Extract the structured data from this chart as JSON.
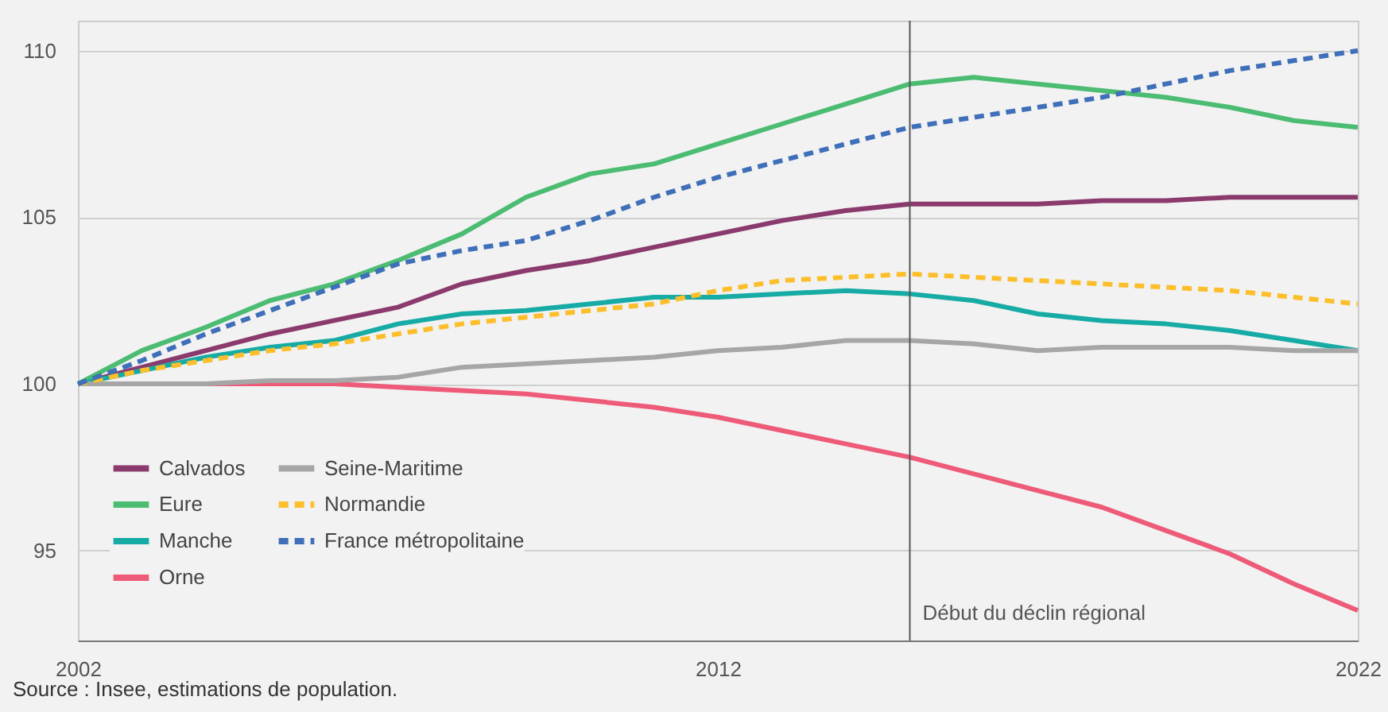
{
  "chart_data": {
    "type": "line",
    "x": [
      2002,
      2003,
      2004,
      2005,
      2006,
      2007,
      2008,
      2009,
      2010,
      2011,
      2012,
      2013,
      2014,
      2015,
      2016,
      2017,
      2018,
      2019,
      2020,
      2021,
      2022
    ],
    "series": [
      {
        "name": "Calvados",
        "color": "#8b3a6e",
        "line_style": "solid",
        "values": [
          100,
          100.5,
          101,
          101.5,
          101.9,
          102.3,
          103,
          103.4,
          103.7,
          104.1,
          104.5,
          104.9,
          105.2,
          105.4,
          105.4,
          105.4,
          105.5,
          105.5,
          105.6,
          105.6,
          105.6
        ]
      },
      {
        "name": "Eure",
        "color": "#4cbc73",
        "line_style": "solid",
        "values": [
          100,
          101,
          101.7,
          102.5,
          103,
          103.7,
          104.5,
          105.6,
          106.3,
          106.6,
          107.2,
          107.8,
          108.4,
          109,
          109.2,
          109,
          108.8,
          108.6,
          108.3,
          107.9,
          107.7
        ]
      },
      {
        "name": "Manche",
        "color": "#16aba4",
        "line_style": "solid",
        "values": [
          100,
          100.4,
          100.8,
          101.1,
          101.3,
          101.8,
          102.1,
          102.2,
          102.4,
          102.6,
          102.6,
          102.7,
          102.8,
          102.7,
          102.5,
          102.1,
          101.9,
          101.8,
          101.6,
          101.3,
          101
        ]
      },
      {
        "name": "Orne",
        "color": "#ee5b78",
        "line_style": "solid",
        "values": [
          100,
          100,
          100,
          100,
          100,
          99.9,
          99.8,
          99.7,
          99.5,
          99.3,
          99,
          98.6,
          98.2,
          97.8,
          97.3,
          96.8,
          96.3,
          95.6,
          94.9,
          94,
          93.2
        ]
      },
      {
        "name": "Seine-Maritime",
        "color": "#a6a6a6",
        "line_style": "solid",
        "values": [
          100,
          100,
          100,
          100.1,
          100.1,
          100.2,
          100.5,
          100.6,
          100.7,
          100.8,
          101,
          101.1,
          101.3,
          101.3,
          101.2,
          101,
          101.1,
          101.1,
          101.1,
          101,
          101
        ]
      },
      {
        "name": "Normandie",
        "color": "#fcbf2b",
        "line_style": "dashed",
        "values": [
          100,
          100.4,
          100.7,
          101,
          101.2,
          101.5,
          101.8,
          102,
          102.2,
          102.4,
          102.8,
          103.1,
          103.2,
          103.3,
          103.2,
          103.1,
          103,
          102.9,
          102.8,
          102.6,
          102.4
        ]
      },
      {
        "name": "France métropolitaine",
        "color": "#3e6fb8",
        "line_style": "dashed",
        "values": [
          100,
          100.7,
          101.5,
          102.2,
          102.9,
          103.6,
          104,
          104.3,
          104.9,
          105.6,
          106.2,
          106.7,
          107.2,
          107.7,
          108,
          108.3,
          108.6,
          109,
          109.4,
          109.7,
          110
        ]
      }
    ],
    "xlim": [
      2002,
      2022
    ],
    "xticks": [
      2002,
      2012,
      2022
    ],
    "ylim": [
      92.3,
      110.9
    ],
    "yticks": [
      95,
      100,
      105,
      110
    ],
    "grid": "y",
    "legend": "bottom left",
    "marker": "none",
    "ref_lines": [
      {
        "axis": "x",
        "value": 2015,
        "label": "Début du déclin régional",
        "color": "#555555"
      }
    ],
    "annotations": [
      "Source : Insee, estimations de population."
    ]
  }
}
